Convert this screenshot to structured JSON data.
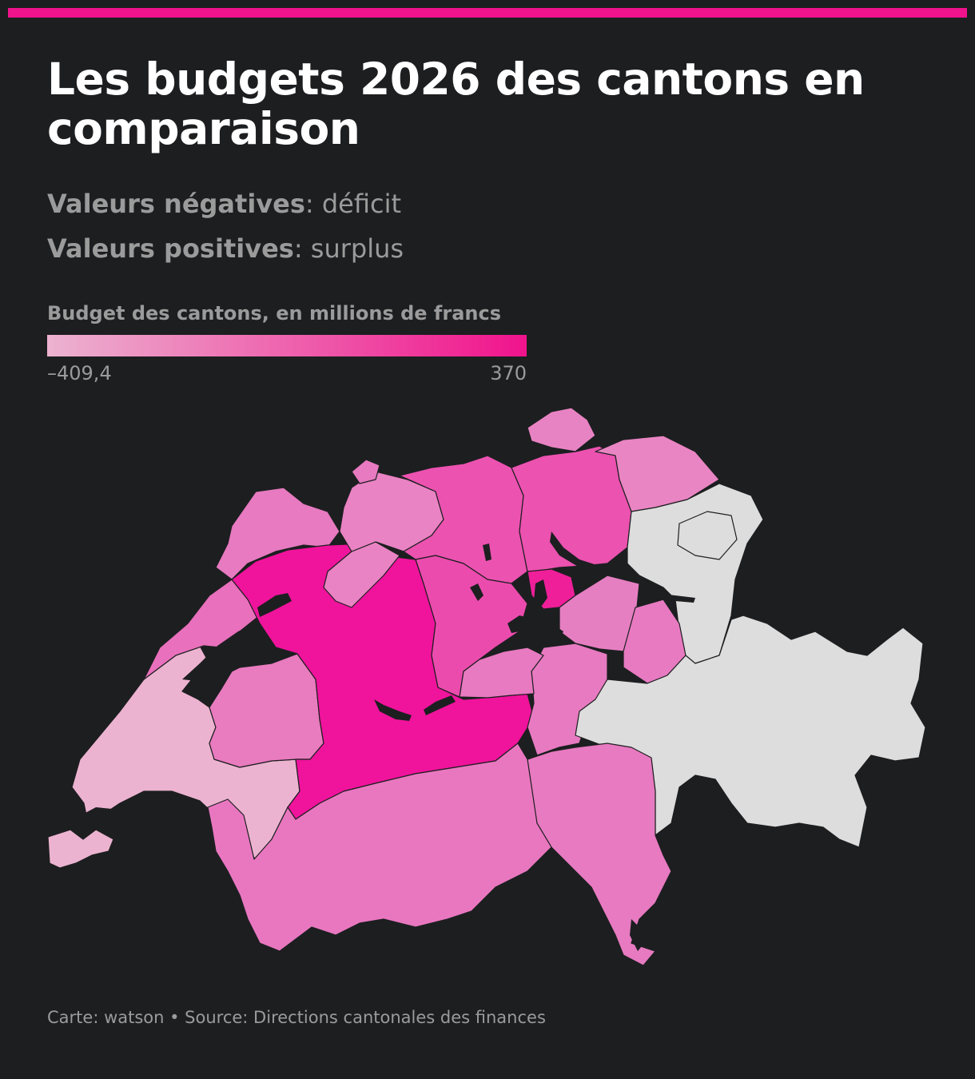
{
  "header": {
    "title": "Les budgets 2026 des cantons en comparaison"
  },
  "notes": {
    "negative_label": "Valeurs négatives",
    "negative_value": ": déficit",
    "positive_label": "Valeurs positives",
    "positive_value": ": surplus"
  },
  "legend": {
    "title": "Budget des cantons, en millions de francs",
    "min_label": "–409,4",
    "max_label": "370",
    "min": -409.4,
    "max": 370,
    "color_low": "#ecb3d0",
    "color_high": "#f0138c"
  },
  "colors": {
    "accent": "#f0138c",
    "background": "#1d1e20",
    "no_data": "#dddddd"
  },
  "footer": {
    "text": "Carte: watson • Source: Directions cantonales des finances"
  }
}
